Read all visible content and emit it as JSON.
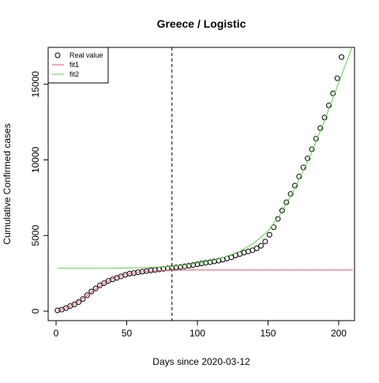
{
  "chart_data": {
    "type": "scatter",
    "title": "Greece / Logistic",
    "xlabel": "Days since 2020-03-12",
    "ylabel": "Cumulative Confirmed cases",
    "xlim": [
      -5.6,
      211.2
    ],
    "ylim": [
      -627,
      17440
    ],
    "xticks": [
      0,
      50,
      100,
      150,
      200
    ],
    "yticks": [
      0,
      5000,
      10000,
      15000
    ],
    "vline": 82,
    "legend": "top-left",
    "series": [
      {
        "name": "Real value",
        "color": "#000000",
        "mark": "circle",
        "x": [
          1,
          4,
          7,
          10,
          13,
          16,
          19,
          22,
          25,
          28,
          31,
          34,
          37,
          40,
          43,
          46,
          49,
          52,
          55,
          58,
          61,
          64,
          67,
          70,
          73,
          76,
          79,
          82,
          85,
          88,
          91,
          94,
          97,
          100,
          103,
          106,
          109,
          112,
          115,
          118,
          121,
          124,
          127,
          130,
          133,
          136,
          139,
          142,
          145,
          148,
          151,
          154,
          157,
          160,
          163,
          166,
          169,
          172,
          175,
          178,
          181,
          184,
          187,
          190,
          193,
          196,
          199,
          202
        ],
        "values": [
          50,
          100,
          200,
          330,
          450,
          600,
          800,
          1050,
          1300,
          1500,
          1700,
          1850,
          2000,
          2100,
          2200,
          2300,
          2400,
          2480,
          2520,
          2570,
          2610,
          2650,
          2690,
          2720,
          2760,
          2800,
          2830,
          2860,
          2890,
          2920,
          2960,
          3000,
          3050,
          3100,
          3150,
          3200,
          3240,
          3290,
          3340,
          3400,
          3480,
          3560,
          3680,
          3780,
          3870,
          3950,
          4030,
          4150,
          4320,
          4600,
          5050,
          5550,
          6100,
          6650,
          7200,
          7750,
          8300,
          8900,
          9500,
          10100,
          10700,
          11400,
          12100,
          12800,
          13600,
          14400,
          15400,
          16800
        ]
      },
      {
        "name": "fit1",
        "color": "#df536b",
        "mark": "line",
        "x": [
          1,
          10,
          20,
          30,
          40,
          50,
          60,
          70,
          80,
          90,
          100,
          110,
          120,
          130,
          140,
          150,
          160,
          170,
          180,
          190,
          200,
          210
        ],
        "values": [
          40,
          300,
          900,
          1600,
          2150,
          2450,
          2600,
          2670,
          2700,
          2715,
          2720,
          2720,
          2720,
          2720,
          2720,
          2720,
          2720,
          2720,
          2720,
          2720,
          2720,
          2720
        ]
      },
      {
        "name": "fit2",
        "color": "#61d04f",
        "mark": "line",
        "x": [
          1,
          10,
          20,
          30,
          40,
          50,
          60,
          70,
          80,
          90,
          100,
          110,
          120,
          130,
          140,
          150,
          160,
          170,
          180,
          190,
          200,
          210
        ],
        "values": [
          2830,
          2830,
          2830,
          2835,
          2840,
          2850,
          2870,
          2900,
          2950,
          3030,
          3150,
          3320,
          3600,
          3950,
          4500,
          5300,
          6600,
          8300,
          10300,
          12600,
          15100,
          17600
        ]
      }
    ]
  }
}
